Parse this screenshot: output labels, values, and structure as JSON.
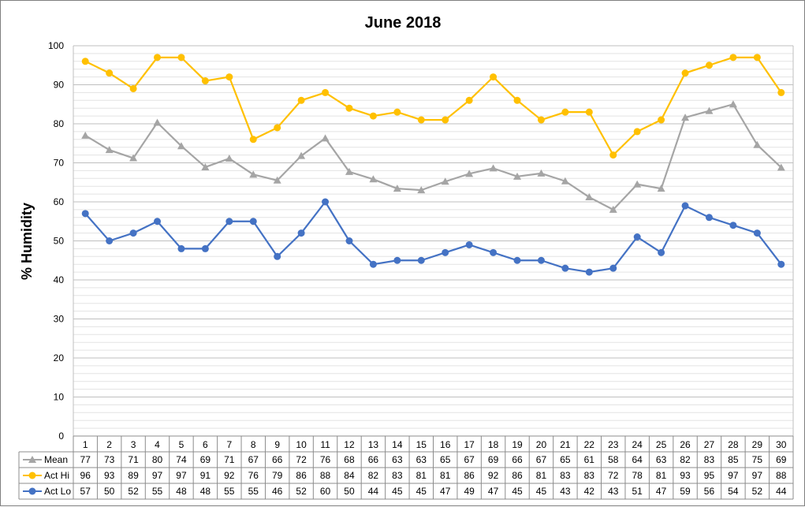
{
  "chart_data": {
    "type": "line",
    "title": "June 2018",
    "ylabel": "% Humidity",
    "xlabel": "",
    "ylim": [
      0,
      100
    ],
    "y_major_ticks": [
      0,
      10,
      20,
      30,
      40,
      50,
      60,
      70,
      80,
      90,
      100
    ],
    "y_minor_step": 2,
    "grid": true,
    "legend": "data-table",
    "categories": [
      "1",
      "2",
      "3",
      "4",
      "5",
      "6",
      "7",
      "8",
      "9",
      "10",
      "11",
      "12",
      "13",
      "14",
      "15",
      "16",
      "17",
      "18",
      "19",
      "20",
      "21",
      "22",
      "23",
      "24",
      "25",
      "26",
      "27",
      "28",
      "29",
      "30"
    ],
    "series": [
      {
        "name": "Mean",
        "color": "#a5a5a5",
        "marker": "triangle",
        "values": [
          77.0,
          73.3,
          71.2,
          80.3,
          74.3,
          68.9,
          71.1,
          67.0,
          65.5,
          71.8,
          76.3,
          67.7,
          65.8,
          63.4,
          63.0,
          65.2,
          67.2,
          68.6,
          66.5,
          67.3,
          65.3,
          61.2,
          58.0,
          64.5,
          63.4,
          81.6,
          83.3,
          85.0,
          74.6,
          68.8
        ],
        "labels": [
          "77",
          "73",
          "71",
          "80",
          "74",
          "69",
          "71",
          "67",
          "66",
          "72",
          "76",
          "68",
          "66",
          "63",
          "63",
          "65",
          "67",
          "69",
          "66",
          "67",
          "65",
          "61",
          "58",
          "64",
          "63",
          "82",
          "83",
          "85",
          "75",
          "69"
        ]
      },
      {
        "name": "Act Hi",
        "color": "#ffc000",
        "marker": "circle",
        "values": [
          96,
          93,
          89,
          97,
          97,
          91,
          92,
          76,
          79,
          86,
          88,
          84,
          82,
          83,
          81,
          81,
          86,
          92,
          86,
          81,
          83,
          83,
          72,
          78,
          81,
          93,
          95,
          97,
          97,
          88
        ],
        "labels": [
          "96",
          "93",
          "89",
          "97",
          "97",
          "91",
          "92",
          "76",
          "79",
          "86",
          "88",
          "84",
          "82",
          "83",
          "81",
          "81",
          "86",
          "92",
          "86",
          "81",
          "83",
          "83",
          "72",
          "78",
          "81",
          "93",
          "95",
          "97",
          "97",
          "88"
        ]
      },
      {
        "name": "Act Lo",
        "color": "#4472c4",
        "marker": "circle",
        "values": [
          57,
          50,
          52,
          55,
          48,
          48,
          55,
          55,
          46,
          52,
          60,
          50,
          44,
          45,
          45,
          47,
          49,
          47,
          45,
          45,
          43,
          42,
          43,
          51,
          47,
          59,
          56,
          54,
          52,
          44
        ],
        "labels": [
          "57",
          "50",
          "52",
          "55",
          "48",
          "48",
          "55",
          "55",
          "46",
          "52",
          "60",
          "50",
          "44",
          "45",
          "45",
          "47",
          "49",
          "47",
          "45",
          "45",
          "43",
          "42",
          "43",
          "51",
          "47",
          "59",
          "56",
          "54",
          "52",
          "44"
        ]
      }
    ]
  }
}
